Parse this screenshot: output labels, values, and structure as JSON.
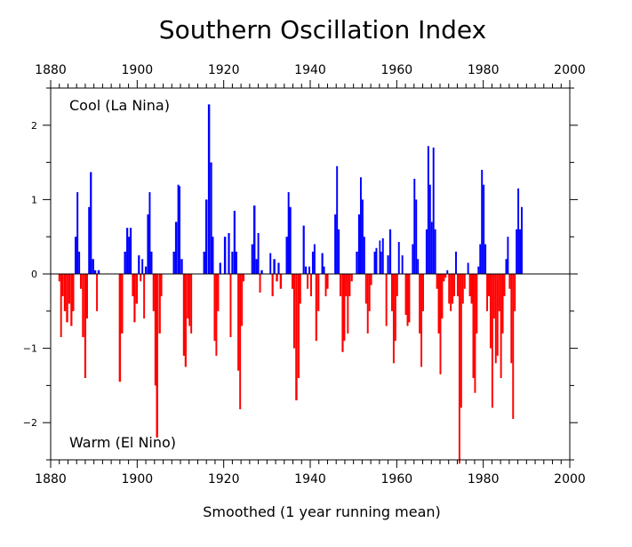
{
  "chart_data": {
    "type": "area",
    "title": "Southern Oscillation Index",
    "xlabel": "Smoothed (1 year running mean)",
    "ylabel": "",
    "xlim": [
      1880,
      2000
    ],
    "ylim": [
      -2.5,
      2.5
    ],
    "x_ticks": [
      "1880",
      "1900",
      "1920",
      "1940",
      "1960",
      "1980",
      "2000"
    ],
    "y_ticks": [
      "−2",
      "−1",
      "0",
      "1",
      "2"
    ],
    "annotations": {
      "top": "Cool (La Nina)",
      "bottom": "Warm (El Nino)"
    },
    "colors": {
      "positive": "#0000ff",
      "negative": "#ff0000"
    },
    "grid": false,
    "points": [
      [
        1882.0,
        -0.1
      ],
      [
        1882.4,
        -0.85
      ],
      [
        1882.8,
        -0.3
      ],
      [
        1883.3,
        -0.5
      ],
      [
        1883.8,
        -0.65
      ],
      [
        1884.3,
        -0.4
      ],
      [
        1884.8,
        -0.7
      ],
      [
        1885.2,
        -0.5
      ],
      [
        1885.8,
        0.5
      ],
      [
        1886.2,
        1.1
      ],
      [
        1886.6,
        0.3
      ],
      [
        1887.0,
        -0.2
      ],
      [
        1887.5,
        -0.85
      ],
      [
        1888.0,
        -1.4
      ],
      [
        1888.4,
        -0.6
      ],
      [
        1888.9,
        0.9
      ],
      [
        1889.3,
        1.37
      ],
      [
        1889.8,
        0.2
      ],
      [
        1890.3,
        0.05
      ],
      [
        1890.7,
        -0.5
      ],
      [
        1891.1,
        0.05
      ],
      [
        1895.5,
        0.0
      ],
      [
        1896.0,
        -1.45
      ],
      [
        1896.5,
        -0.8
      ],
      [
        1897.2,
        0.3
      ],
      [
        1897.7,
        0.62
      ],
      [
        1898.1,
        0.5
      ],
      [
        1898.5,
        0.62
      ],
      [
        1899.0,
        -0.3
      ],
      [
        1899.4,
        -0.65
      ],
      [
        1899.9,
        -0.4
      ],
      [
        1900.4,
        0.25
      ],
      [
        1900.8,
        -0.1
      ],
      [
        1901.2,
        0.2
      ],
      [
        1901.6,
        -0.6
      ],
      [
        1902.0,
        0.1
      ],
      [
        1902.5,
        0.8
      ],
      [
        1902.9,
        1.1
      ],
      [
        1903.3,
        0.3
      ],
      [
        1903.8,
        -0.5
      ],
      [
        1904.2,
        -1.5
      ],
      [
        1904.6,
        -2.2
      ],
      [
        1905.2,
        -0.8
      ],
      [
        1905.6,
        -0.3
      ],
      [
        1906.0,
        0.0
      ],
      [
        1908.5,
        0.3
      ],
      [
        1909.0,
        0.7
      ],
      [
        1909.5,
        1.2
      ],
      [
        1909.8,
        1.18
      ],
      [
        1910.3,
        0.2
      ],
      [
        1910.8,
        -1.1
      ],
      [
        1911.2,
        -1.25
      ],
      [
        1911.7,
        -0.6
      ],
      [
        1912.1,
        -0.7
      ],
      [
        1912.5,
        -0.8
      ],
      [
        1912.9,
        0.0
      ],
      [
        1915.5,
        0.3
      ],
      [
        1916.0,
        1.0
      ],
      [
        1916.6,
        2.28
      ],
      [
        1917.1,
        1.5
      ],
      [
        1917.5,
        0.5
      ],
      [
        1917.9,
        -0.9
      ],
      [
        1918.3,
        -1.1
      ],
      [
        1918.7,
        -0.5
      ],
      [
        1919.2,
        0.15
      ],
      [
        1919.6,
        0.0
      ],
      [
        1920.3,
        0.5
      ],
      [
        1920.7,
        0.0
      ],
      [
        1921.2,
        0.55
      ],
      [
        1921.6,
        -0.85
      ],
      [
        1922.0,
        0.3
      ],
      [
        1922.5,
        0.85
      ],
      [
        1922.9,
        0.3
      ],
      [
        1923.4,
        -1.3
      ],
      [
        1923.8,
        -1.82
      ],
      [
        1924.2,
        -0.7
      ],
      [
        1924.6,
        -0.1
      ],
      [
        1925.0,
        0.0
      ],
      [
        1926.2,
        0.0
      ],
      [
        1926.6,
        0.4
      ],
      [
        1927.1,
        0.92
      ],
      [
        1927.6,
        0.2
      ],
      [
        1928.0,
        0.55
      ],
      [
        1928.4,
        -0.25
      ],
      [
        1928.8,
        0.05
      ],
      [
        1930.5,
        0.0
      ],
      [
        1930.8,
        0.28
      ],
      [
        1931.3,
        -0.3
      ],
      [
        1931.7,
        0.2
      ],
      [
        1932.3,
        -0.1
      ],
      [
        1932.7,
        0.15
      ],
      [
        1933.2,
        -0.2
      ],
      [
        1933.8,
        0.0
      ],
      [
        1934.6,
        0.5
      ],
      [
        1935.0,
        1.1
      ],
      [
        1935.4,
        0.9
      ],
      [
        1935.9,
        -0.2
      ],
      [
        1936.3,
        -1.0
      ],
      [
        1936.8,
        -1.7
      ],
      [
        1937.3,
        -1.4
      ],
      [
        1937.7,
        -0.4
      ],
      [
        1938.1,
        0.0
      ],
      [
        1938.5,
        0.65
      ],
      [
        1939.0,
        0.1
      ],
      [
        1939.4,
        -0.2
      ],
      [
        1939.8,
        0.1
      ],
      [
        1940.2,
        -0.3
      ],
      [
        1940.6,
        0.3
      ],
      [
        1941.0,
        0.4
      ],
      [
        1941.4,
        -0.9
      ],
      [
        1941.9,
        -0.5
      ],
      [
        1942.3,
        0.0
      ],
      [
        1942.8,
        0.28
      ],
      [
        1943.2,
        0.1
      ],
      [
        1943.6,
        -0.3
      ],
      [
        1944.0,
        -0.2
      ],
      [
        1944.5,
        0.0
      ],
      [
        1945.3,
        0.0
      ],
      [
        1945.8,
        0.8
      ],
      [
        1946.2,
        1.45
      ],
      [
        1946.6,
        0.6
      ],
      [
        1947.0,
        -0.3
      ],
      [
        1947.5,
        -1.05
      ],
      [
        1947.9,
        -0.9
      ],
      [
        1948.3,
        -0.3
      ],
      [
        1948.7,
        -0.8
      ],
      [
        1949.1,
        -0.3
      ],
      [
        1949.6,
        -0.1
      ],
      [
        1950.0,
        0.0
      ],
      [
        1950.8,
        0.3
      ],
      [
        1951.3,
        0.8
      ],
      [
        1951.7,
        1.3
      ],
      [
        1952.1,
        1.0
      ],
      [
        1952.5,
        0.5
      ],
      [
        1952.9,
        -0.4
      ],
      [
        1953.3,
        -0.8
      ],
      [
        1953.7,
        -0.5
      ],
      [
        1954.1,
        -0.15
      ],
      [
        1954.5,
        0.0
      ],
      [
        1954.9,
        0.3
      ],
      [
        1955.3,
        0.35
      ],
      [
        1955.7,
        0.0
      ],
      [
        1956.1,
        0.45
      ],
      [
        1956.4,
        0.3
      ],
      [
        1956.8,
        0.48
      ],
      [
        1957.2,
        0.0
      ],
      [
        1957.6,
        -0.7
      ],
      [
        1958.0,
        0.25
      ],
      [
        1958.5,
        0.6
      ],
      [
        1958.9,
        -0.5
      ],
      [
        1959.3,
        -1.2
      ],
      [
        1959.7,
        -0.9
      ],
      [
        1960.1,
        -0.3
      ],
      [
        1960.5,
        0.43
      ],
      [
        1960.9,
        0.0
      ],
      [
        1961.3,
        0.25
      ],
      [
        1961.7,
        0.0
      ],
      [
        1962.1,
        -0.55
      ],
      [
        1962.5,
        -0.7
      ],
      [
        1962.9,
        -0.65
      ],
      [
        1963.3,
        0.0
      ],
      [
        1963.7,
        0.4
      ],
      [
        1964.1,
        1.28
      ],
      [
        1964.5,
        1.0
      ],
      [
        1964.9,
        0.2
      ],
      [
        1965.3,
        -0.8
      ],
      [
        1965.7,
        -1.25
      ],
      [
        1966.1,
        -0.5
      ],
      [
        1966.5,
        0.0
      ],
      [
        1966.9,
        0.6
      ],
      [
        1967.3,
        1.72
      ],
      [
        1967.7,
        1.2
      ],
      [
        1968.1,
        0.7
      ],
      [
        1968.5,
        1.7
      ],
      [
        1968.9,
        0.6
      ],
      [
        1969.3,
        -0.2
      ],
      [
        1969.7,
        -0.8
      ],
      [
        1970.1,
        -1.35
      ],
      [
        1970.5,
        -0.6
      ],
      [
        1970.9,
        -0.1
      ],
      [
        1971.3,
        -0.05
      ],
      [
        1971.7,
        0.05
      ],
      [
        1972.1,
        -0.4
      ],
      [
        1972.5,
        -0.5
      ],
      [
        1972.9,
        -0.4
      ],
      [
        1973.3,
        -0.3
      ],
      [
        1973.7,
        0.3
      ],
      [
        1974.1,
        -0.3
      ],
      [
        1974.5,
        -2.55
      ],
      [
        1974.9,
        -1.8
      ],
      [
        1975.3,
        -0.4
      ],
      [
        1975.7,
        -0.2
      ],
      [
        1976.1,
        0.0
      ],
      [
        1976.5,
        0.15
      ],
      [
        1976.9,
        -0.3
      ],
      [
        1977.3,
        -0.4
      ],
      [
        1977.7,
        -1.4
      ],
      [
        1978.1,
        -1.6
      ],
      [
        1978.5,
        -0.8
      ],
      [
        1978.9,
        0.1
      ],
      [
        1979.3,
        0.4
      ],
      [
        1979.7,
        1.4
      ],
      [
        1980.1,
        1.2
      ],
      [
        1980.5,
        0.4
      ],
      [
        1980.9,
        -0.5
      ],
      [
        1981.3,
        -0.3
      ],
      [
        1981.7,
        -1.0
      ],
      [
        1982.1,
        -1.8
      ],
      [
        1982.5,
        -0.6
      ],
      [
        1982.9,
        -1.2
      ],
      [
        1983.3,
        -1.1
      ],
      [
        1983.7,
        -0.5
      ],
      [
        1984.1,
        -1.4
      ],
      [
        1984.5,
        -0.8
      ],
      [
        1984.9,
        -0.3
      ],
      [
        1985.3,
        0.2
      ],
      [
        1985.7,
        0.5
      ],
      [
        1986.1,
        -0.2
      ],
      [
        1986.5,
        -1.2
      ],
      [
        1986.9,
        -1.95
      ],
      [
        1987.3,
        -0.5
      ],
      [
        1987.7,
        0.6
      ],
      [
        1988.1,
        1.15
      ],
      [
        1988.5,
        0.6
      ],
      [
        1988.9,
        0.9
      ]
    ]
  }
}
